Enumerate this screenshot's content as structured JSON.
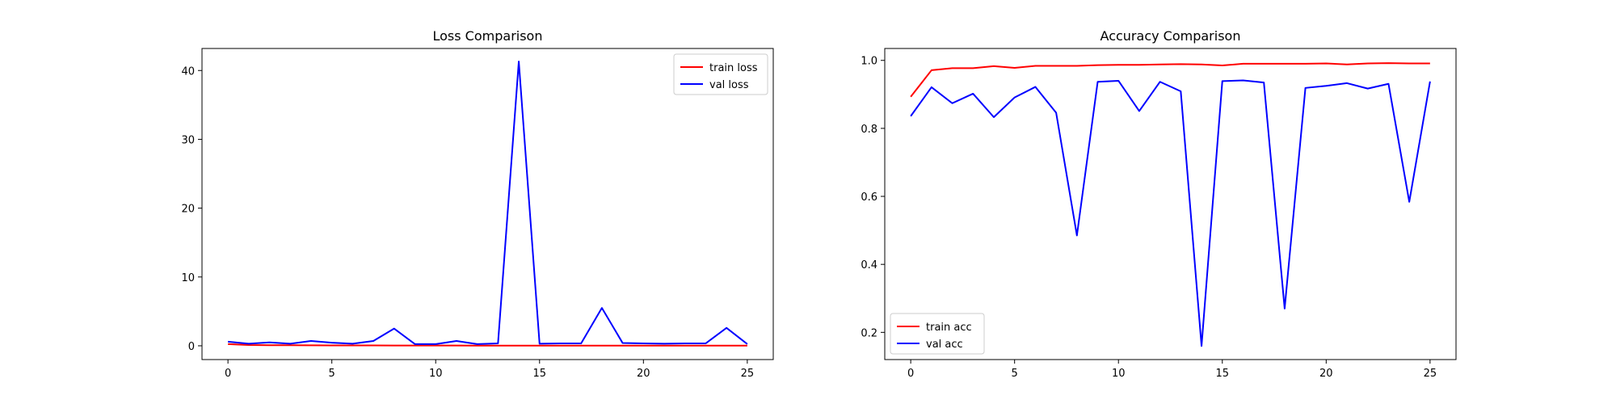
{
  "chart_data": [
    {
      "type": "line",
      "title": "Loss Comparison",
      "xlabel": "",
      "ylabel": "",
      "xlim": [
        -1.25,
        26.25
      ],
      "ylim": [
        -2.0,
        43.2
      ],
      "xticks": [
        0,
        5,
        10,
        15,
        20,
        25
      ],
      "yticks": [
        0,
        10,
        20,
        30,
        40
      ],
      "grid": false,
      "legend_position": "top-right",
      "x": [
        0,
        1,
        2,
        3,
        4,
        5,
        6,
        7,
        8,
        9,
        10,
        11,
        12,
        13,
        14,
        15,
        16,
        17,
        18,
        19,
        20,
        21,
        22,
        23,
        24,
        25
      ],
      "series": [
        {
          "name": "train loss",
          "color": "#ff0000",
          "values": [
            0.25,
            0.12,
            0.09,
            0.08,
            0.07,
            0.06,
            0.05,
            0.05,
            0.04,
            0.04,
            0.04,
            0.04,
            0.03,
            0.03,
            0.03,
            0.03,
            0.03,
            0.03,
            0.03,
            0.02,
            0.02,
            0.02,
            0.02,
            0.02,
            0.02,
            0.02
          ]
        },
        {
          "name": "val loss",
          "color": "#0000ff",
          "values": [
            0.6,
            0.3,
            0.5,
            0.3,
            0.7,
            0.45,
            0.3,
            0.7,
            2.5,
            0.25,
            0.25,
            0.7,
            0.25,
            0.35,
            41.3,
            0.3,
            0.35,
            0.35,
            5.5,
            0.4,
            0.35,
            0.3,
            0.35,
            0.35,
            2.6,
            0.25
          ]
        }
      ]
    },
    {
      "type": "line",
      "title": "Accuracy Comparison",
      "xlabel": "",
      "ylabel": "",
      "xlim": [
        -1.25,
        26.25
      ],
      "ylim": [
        0.12,
        1.035
      ],
      "xticks": [
        0,
        5,
        10,
        15,
        20,
        25
      ],
      "yticks": [
        0.2,
        0.4,
        0.6,
        0.8,
        1.0
      ],
      "ytick_labels": [
        "0.2",
        "0.4",
        "0.6",
        "0.8",
        "1.0"
      ],
      "grid": false,
      "legend_position": "bottom-left",
      "x": [
        0,
        1,
        2,
        3,
        4,
        5,
        6,
        7,
        8,
        9,
        10,
        11,
        12,
        13,
        14,
        15,
        16,
        17,
        18,
        19,
        20,
        21,
        22,
        23,
        24,
        25
      ],
      "series": [
        {
          "name": "train acc",
          "color": "#ff0000",
          "values": [
            0.893,
            0.971,
            0.977,
            0.977,
            0.983,
            0.978,
            0.984,
            0.984,
            0.984,
            0.986,
            0.987,
            0.987,
            0.988,
            0.989,
            0.988,
            0.985,
            0.99,
            0.99,
            0.99,
            0.99,
            0.991,
            0.988,
            0.991,
            0.992,
            0.991,
            0.991
          ]
        },
        {
          "name": "val acc",
          "color": "#0000ff",
          "values": [
            0.836,
            0.921,
            0.874,
            0.902,
            0.833,
            0.891,
            0.922,
            0.846,
            0.485,
            0.937,
            0.94,
            0.851,
            0.937,
            0.909,
            0.16,
            0.939,
            0.941,
            0.935,
            0.27,
            0.919,
            0.925,
            0.933,
            0.917,
            0.931,
            0.584,
            0.938
          ]
        }
      ]
    }
  ]
}
